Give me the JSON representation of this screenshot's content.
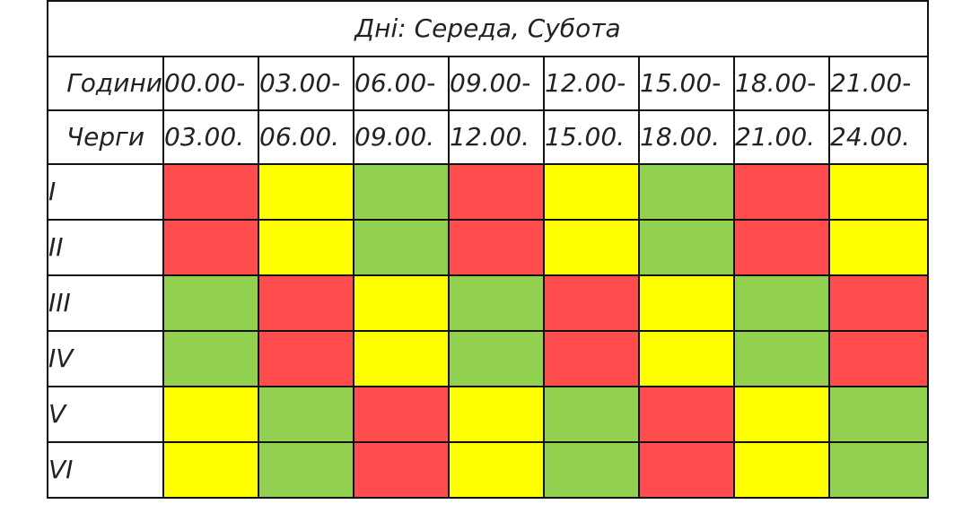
{
  "title": "Дні: Середа, Субота",
  "hours_label": "Години",
  "queues_label": "Черги",
  "time_slots": [
    {
      "start": "00.00-",
      "end": "03.00."
    },
    {
      "start": "03.00-",
      "end": "06.00."
    },
    {
      "start": "06.00-",
      "end": "09.00."
    },
    {
      "start": "09.00-",
      "end": "12.00."
    },
    {
      "start": "12.00-",
      "end": "15.00."
    },
    {
      "start": "15.00-",
      "end": "18.00."
    },
    {
      "start": "18.00-",
      "end": "21.00."
    },
    {
      "start": "21.00-",
      "end": "24.00."
    }
  ],
  "status_colors": {
    "red": "#ff4d4d",
    "yellow": "#ffff00",
    "green": "#92d050"
  },
  "queues": [
    {
      "label": "I",
      "slots": [
        "red",
        "yellow",
        "green",
        "red",
        "yellow",
        "green",
        "red",
        "yellow"
      ]
    },
    {
      "label": "II",
      "slots": [
        "red",
        "yellow",
        "green",
        "red",
        "yellow",
        "green",
        "red",
        "yellow"
      ]
    },
    {
      "label": "III",
      "slots": [
        "green",
        "red",
        "yellow",
        "green",
        "red",
        "yellow",
        "green",
        "red"
      ]
    },
    {
      "label": "IV",
      "slots": [
        "green",
        "red",
        "yellow",
        "green",
        "red",
        "yellow",
        "green",
        "red"
      ]
    },
    {
      "label": "V",
      "slots": [
        "yellow",
        "green",
        "red",
        "yellow",
        "green",
        "red",
        "yellow",
        "green"
      ]
    },
    {
      "label": "VI",
      "slots": [
        "yellow",
        "green",
        "red",
        "yellow",
        "green",
        "red",
        "yellow",
        "green"
      ]
    }
  ]
}
